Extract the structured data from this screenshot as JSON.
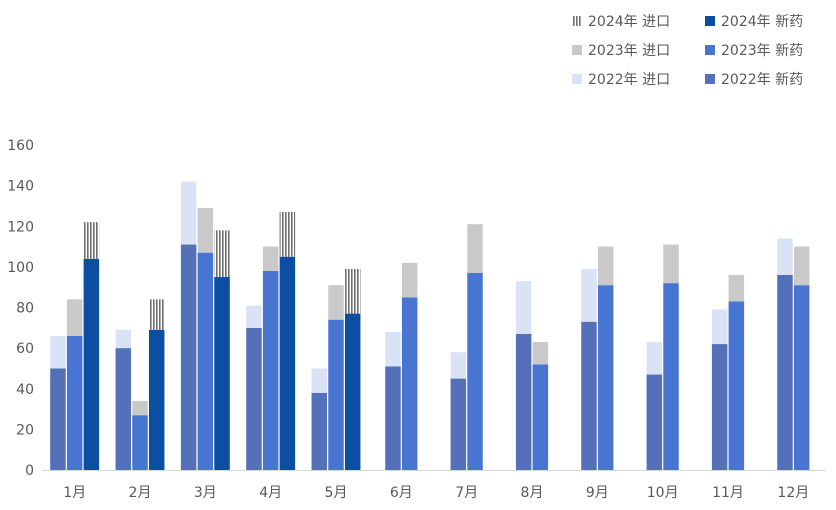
{
  "chart_data": {
    "type": "bar",
    "stacked_pairs": true,
    "categories": [
      "1月",
      "2月",
      "3月",
      "4月",
      "5月",
      "6月",
      "7月",
      "8月",
      "9月",
      "10月",
      "11月",
      "12月"
    ],
    "ylim": [
      0,
      160
    ],
    "yticks": [
      0,
      20,
      40,
      60,
      80,
      100,
      120,
      140,
      160
    ],
    "grid": false,
    "legend_position": "top-right",
    "series": [
      {
        "name": "2022年 新药",
        "year": 2022,
        "part": "new_drug",
        "color": "#5470B8",
        "values": [
          50,
          60,
          111,
          70,
          38,
          51,
          45,
          67,
          73,
          47,
          62,
          96
        ]
      },
      {
        "name": "2022年 进口",
        "year": 2022,
        "part": "import",
        "color": "#DAE3F5",
        "values": [
          16,
          9,
          31,
          11,
          12,
          17,
          13,
          26,
          26,
          16,
          17,
          18
        ]
      },
      {
        "name": "2023年 新药",
        "year": 2023,
        "part": "new_drug",
        "color": "#4874D2",
        "values": [
          66,
          27,
          107,
          98,
          74,
          85,
          97,
          52,
          91,
          92,
          83,
          91
        ]
      },
      {
        "name": "2023年 进口",
        "year": 2023,
        "part": "import",
        "color": "#C9C9C9",
        "values": [
          18,
          7,
          22,
          12,
          17,
          17,
          24,
          11,
          19,
          19,
          13,
          19
        ]
      },
      {
        "name": "2024年 新药",
        "year": 2024,
        "part": "new_drug",
        "color": "#0C4EA2",
        "values": [
          104,
          69,
          95,
          105,
          77,
          null,
          null,
          null,
          null,
          null,
          null,
          null
        ]
      },
      {
        "name": "2024年 进口",
        "year": 2024,
        "part": "import",
        "color": "#7F7F7F",
        "pattern": "vertical-stripes",
        "values": [
          18,
          15,
          23,
          22,
          22,
          null,
          null,
          null,
          null,
          null,
          null,
          null
        ]
      }
    ],
    "legend_order": [
      "2024年 进口",
      "2024年 新药",
      "2023年 进口",
      "2023年 新药",
      "2022年 进口",
      "2022年 新药"
    ]
  }
}
